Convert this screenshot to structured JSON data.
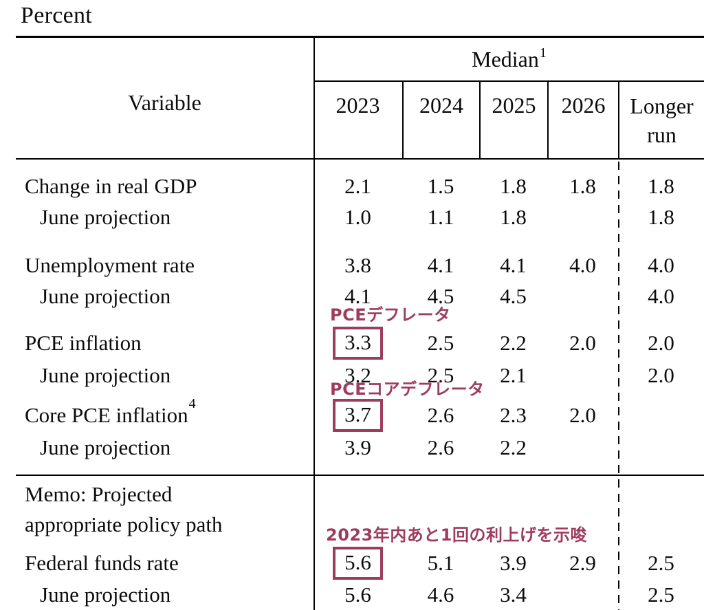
{
  "accent_color": "#9d3c5b",
  "title": "Percent",
  "table": {
    "header": {
      "variable": "Variable",
      "median": "Median",
      "median_sup": "1",
      "years": [
        "2023",
        "2024",
        "2025",
        "2026"
      ],
      "longer_run": "Longer run"
    },
    "rows": [
      {
        "label": "Change in real GDP",
        "values": [
          "2.1",
          "1.5",
          "1.8",
          "1.8",
          "1.8"
        ]
      },
      {
        "label": "June projection",
        "values": [
          "1.0",
          "1.1",
          "1.8",
          "",
          "1.8"
        ]
      },
      {
        "label": "Unemployment rate",
        "values": [
          "3.8",
          "4.1",
          "4.1",
          "4.0",
          "4.0"
        ]
      },
      {
        "label": "June projection",
        "values": [
          "4.1",
          "4.5",
          "4.5",
          "",
          "4.0"
        ]
      },
      {
        "label": "PCE inflation",
        "values": [
          "3.3",
          "2.5",
          "2.2",
          "2.0",
          "2.0"
        ],
        "boxed_value_index": 0
      },
      {
        "label": "June projection",
        "values": [
          "3.2",
          "2.5",
          "2.1",
          "",
          "2.0"
        ]
      },
      {
        "label": "Core PCE inflation",
        "sup": "4",
        "values": [
          "3.7",
          "2.6",
          "2.3",
          "2.0",
          ""
        ],
        "boxed_value_index": 0
      },
      {
        "label": "June projection",
        "values": [
          "3.9",
          "2.6",
          "2.2",
          "",
          ""
        ]
      },
      {
        "label": "Federal funds rate",
        "values": [
          "5.6",
          "5.1",
          "3.9",
          "2.9",
          "2.5"
        ],
        "boxed_value_index": 0
      },
      {
        "label": "June projection",
        "values": [
          "5.6",
          "4.6",
          "3.4",
          "",
          "2.5"
        ]
      }
    ],
    "memo": {
      "line1": "Memo: Projected",
      "line2": "appropriate policy path"
    },
    "annotations": [
      {
        "text": "PCEデフレータ"
      },
      {
        "text": "PCEコアデフレータ"
      },
      {
        "text": "2023年内あと1回の利上げを示唆"
      }
    ]
  }
}
